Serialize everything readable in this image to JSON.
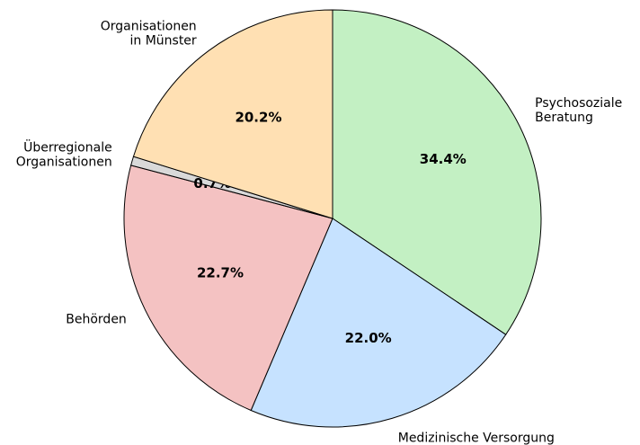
{
  "chart_data": {
    "type": "pie",
    "categories": [
      "Psychosoziale\nBeratung",
      "Medizinische Versorgung",
      "Behörden",
      "Überregionale\nOrganisationen",
      "Organisationen\nin Münster"
    ],
    "values": [
      34.4,
      22.0,
      22.7,
      0.7,
      20.2
    ],
    "value_labels": [
      "34.4%",
      "22.0%",
      "22.7%",
      "0.7%",
      "20.2%"
    ],
    "colors": [
      "#c3f0c3",
      "#c6e2ff",
      "#f4c2c2",
      "#d9d9d9",
      "#ffe0b3"
    ]
  }
}
